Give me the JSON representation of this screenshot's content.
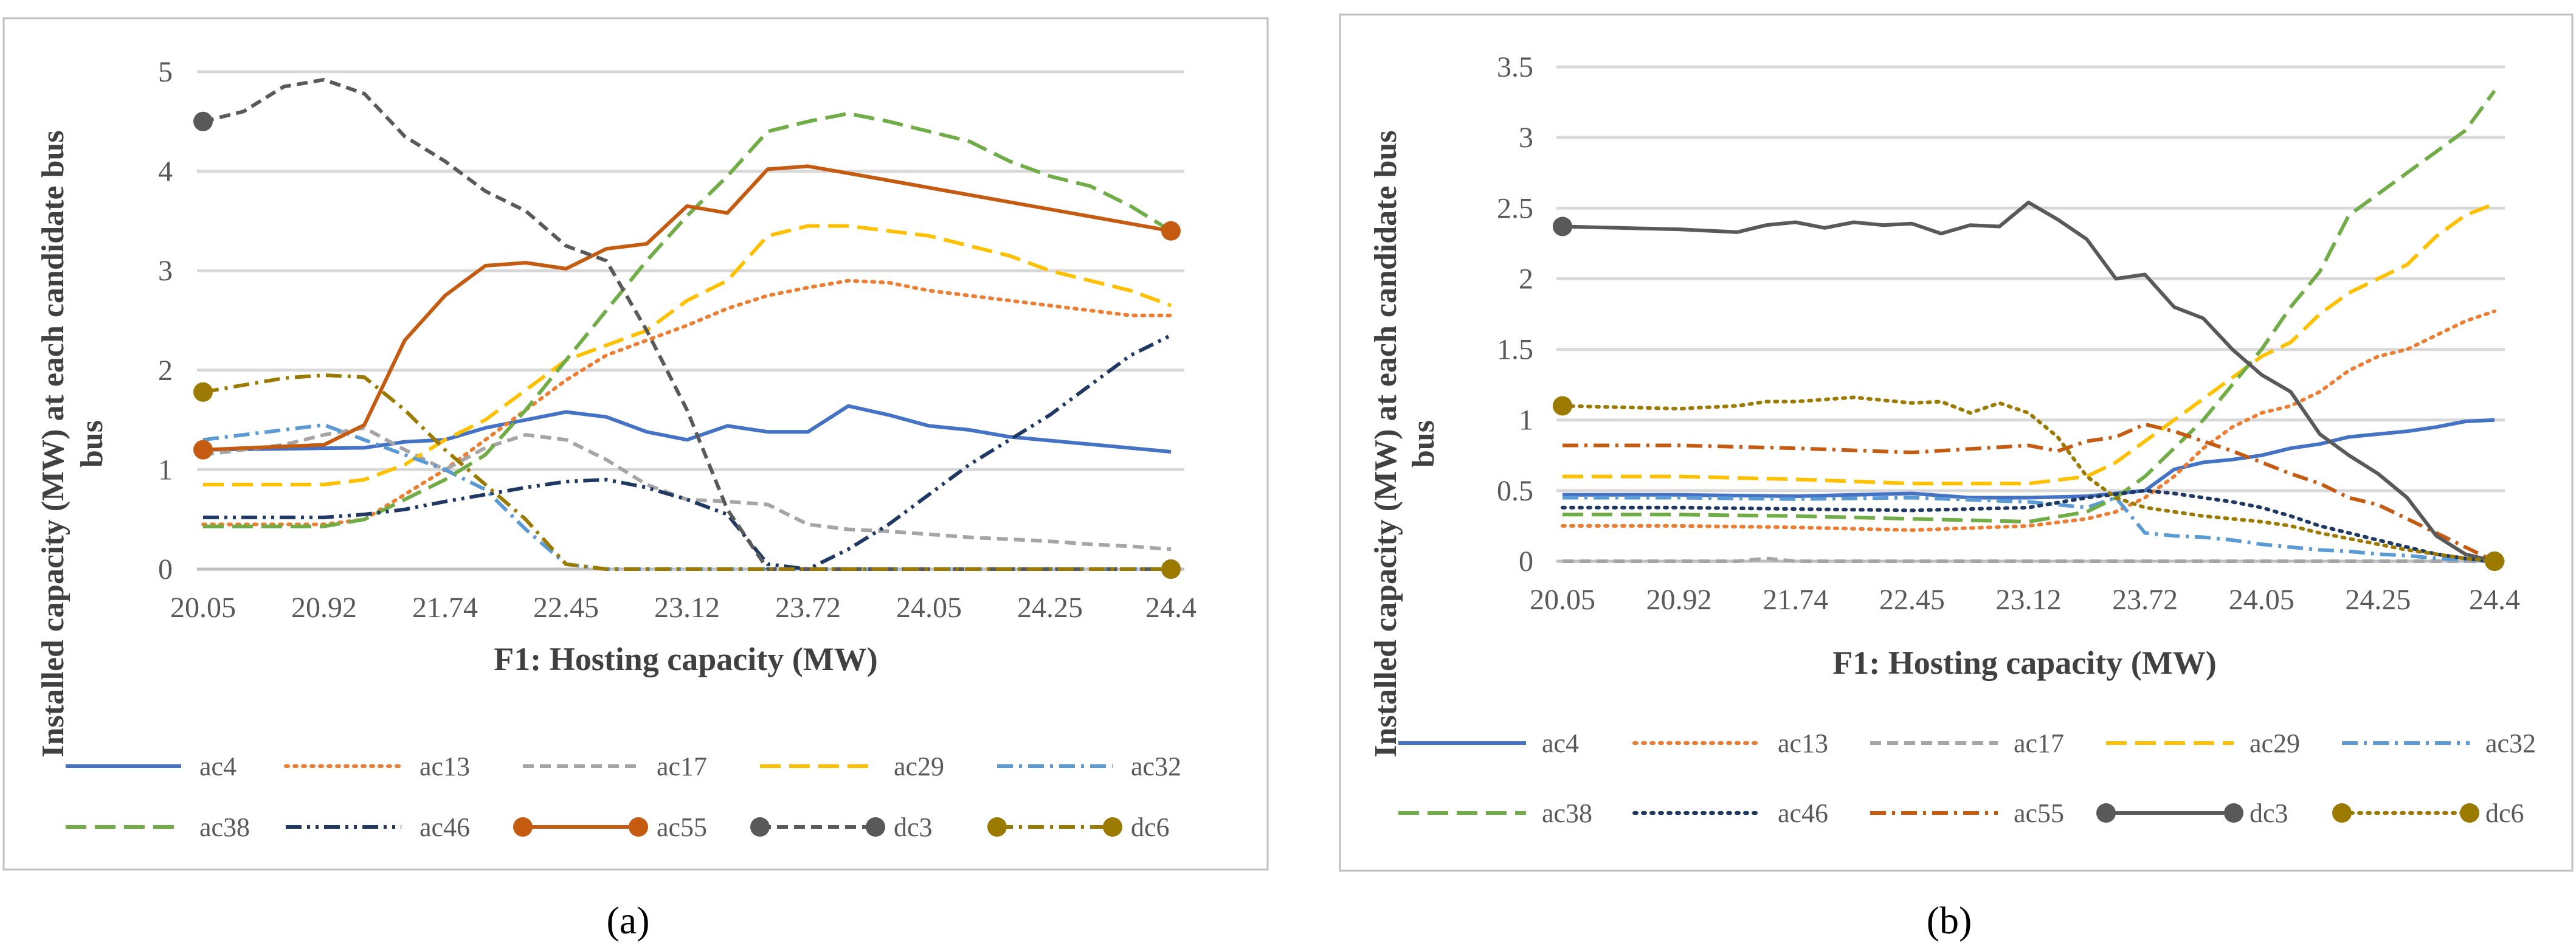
{
  "chart_data": [
    {
      "type": "line",
      "caption": "(a)",
      "ylabel": "Installed capacity (MW) at each candidate bus",
      "xlabel": "F1: Hosting capacity (MW)",
      "ylim": [
        0,
        5
      ],
      "yticks": [
        "0",
        "1",
        "2",
        "3",
        "4",
        "5"
      ],
      "x_tick_labels": [
        "20.05",
        "20.92",
        "21.74",
        "22.45",
        "23.12",
        "23.72",
        "24.05",
        "24.25",
        "24.4"
      ],
      "x_index_range": [
        0,
        24
      ],
      "grid": true,
      "legend": "bottom",
      "series": [
        {
          "name": "ac4",
          "color": "#4472C4",
          "style": "solid",
          "x": [
            0,
            4,
            5,
            6,
            7,
            8,
            9,
            10,
            11,
            12,
            13,
            14,
            15,
            16,
            17,
            18,
            19,
            20,
            24
          ],
          "y": [
            1.2,
            1.22,
            1.28,
            1.3,
            1.42,
            1.5,
            1.58,
            1.53,
            1.38,
            1.3,
            1.44,
            1.38,
            1.38,
            1.64,
            1.55,
            1.44,
            1.4,
            1.33,
            1.18
          ]
        },
        {
          "name": "ac13",
          "color": "#ED7D31",
          "style": "dotted",
          "x": [
            0,
            3,
            4,
            5,
            6,
            7,
            8,
            9,
            10,
            11,
            12,
            13,
            14,
            15,
            16,
            17,
            18,
            19,
            20,
            21,
            22,
            23,
            24
          ],
          "y": [
            0.45,
            0.45,
            0.5,
            0.75,
            1.0,
            1.3,
            1.6,
            1.9,
            2.15,
            2.3,
            2.45,
            2.62,
            2.75,
            2.83,
            2.9,
            2.88,
            2.8,
            2.75,
            2.7,
            2.65,
            2.6,
            2.55,
            2.55
          ]
        },
        {
          "name": "ac17",
          "color": "#A5A5A5",
          "style": "dash",
          "x": [
            0,
            2,
            3,
            4,
            5,
            6,
            7,
            8,
            9,
            10,
            11,
            12,
            13,
            14,
            15,
            16,
            17,
            18,
            19,
            20,
            21,
            22,
            23,
            24
          ],
          "y": [
            1.15,
            1.25,
            1.35,
            1.42,
            1.2,
            1.0,
            1.22,
            1.35,
            1.3,
            1.1,
            0.85,
            0.7,
            0.68,
            0.65,
            0.45,
            0.4,
            0.38,
            0.35,
            0.32,
            0.3,
            0.28,
            0.25,
            0.23,
            0.2
          ]
        },
        {
          "name": "ac29",
          "color": "#FFC000",
          "style": "longdash",
          "x": [
            0,
            3,
            4,
            5,
            6,
            7,
            8,
            9,
            10,
            11,
            12,
            13,
            14,
            15,
            16,
            17,
            18,
            19,
            20,
            21,
            22,
            23,
            24
          ],
          "y": [
            0.85,
            0.85,
            0.9,
            1.05,
            1.3,
            1.5,
            1.8,
            2.1,
            2.25,
            2.4,
            2.7,
            2.9,
            3.35,
            3.45,
            3.45,
            3.4,
            3.35,
            3.25,
            3.15,
            3.0,
            2.9,
            2.8,
            2.65
          ]
        },
        {
          "name": "ac32",
          "color": "#5B9BD5",
          "style": "dashdot",
          "x": [
            0,
            1,
            2,
            3,
            4,
            5,
            6,
            7,
            8,
            9,
            10,
            11,
            12,
            14,
            16,
            18,
            20,
            24
          ],
          "y": [
            1.3,
            1.35,
            1.4,
            1.45,
            1.3,
            1.15,
            1.0,
            0.8,
            0.4,
            0.05,
            0.0,
            0.0,
            0.0,
            0.0,
            0.0,
            0.0,
            0.0,
            0.0
          ]
        },
        {
          "name": "ac38",
          "color": "#70AD47",
          "style": "longdash",
          "x": [
            0,
            3,
            4,
            5,
            6,
            7,
            8,
            9,
            10,
            11,
            12,
            13,
            14,
            15,
            16,
            17,
            18,
            19,
            20,
            21,
            22,
            23,
            24
          ],
          "y": [
            0.43,
            0.43,
            0.5,
            0.7,
            0.9,
            1.15,
            1.6,
            2.1,
            2.6,
            3.1,
            3.55,
            3.95,
            4.4,
            4.5,
            4.58,
            4.5,
            4.4,
            4.3,
            4.1,
            3.95,
            3.85,
            3.65,
            3.4
          ]
        },
        {
          "name": "ac46",
          "color": "#203864",
          "style": "dashdotdot",
          "x": [
            0,
            3,
            4,
            5,
            6,
            7,
            8,
            9,
            10,
            11,
            12,
            13,
            14,
            15,
            16,
            17,
            18,
            19,
            20,
            21,
            22,
            23,
            24
          ],
          "y": [
            0.52,
            0.52,
            0.55,
            0.6,
            0.68,
            0.75,
            0.82,
            0.88,
            0.9,
            0.82,
            0.7,
            0.55,
            0.05,
            0.0,
            0.2,
            0.45,
            0.75,
            1.05,
            1.3,
            1.55,
            1.85,
            2.15,
            2.35
          ]
        },
        {
          "name": "ac55",
          "color": "#C55A11",
          "style": "solid",
          "markers": true,
          "x": [
            0,
            3,
            4,
            5,
            6,
            7,
            8,
            9,
            10,
            11,
            12,
            13,
            14,
            15,
            16,
            24
          ],
          "y": [
            1.2,
            1.25,
            1.45,
            2.3,
            2.75,
            3.05,
            3.08,
            3.02,
            3.22,
            3.27,
            3.65,
            3.58,
            4.02,
            4.05,
            3.98,
            3.4
          ]
        },
        {
          "name": "dc3",
          "color": "#595959",
          "style": "dash",
          "markers": true,
          "x": [
            0,
            1,
            2,
            3,
            4,
            5,
            6,
            7,
            8,
            9,
            10,
            11,
            12,
            13,
            14,
            15,
            16,
            18,
            20,
            22,
            24
          ],
          "y": [
            4.5,
            4.6,
            4.85,
            4.92,
            4.78,
            4.35,
            4.1,
            3.8,
            3.6,
            3.25,
            3.1,
            2.4,
            1.6,
            0.6,
            0.0,
            0.0,
            0.0,
            0.0,
            0.0,
            0.0,
            0.0
          ]
        },
        {
          "name": "dc6",
          "color": "#9C7A00",
          "style": "dashdot",
          "markers": true,
          "x": [
            0,
            1,
            2,
            3,
            4,
            5,
            6,
            7,
            8,
            9,
            10,
            11,
            12,
            14,
            16,
            18,
            20,
            22,
            24
          ],
          "y": [
            1.78,
            1.85,
            1.92,
            1.95,
            1.93,
            1.6,
            1.2,
            0.85,
            0.5,
            0.05,
            0.0,
            0.0,
            0.0,
            0.0,
            0.0,
            0.0,
            0.0,
            0.0,
            0.0
          ]
        }
      ]
    },
    {
      "type": "line",
      "caption": "(b)",
      "ylabel": "Installed capacity (MW) at each candidate bus",
      "xlabel": "F1: Hosting capacity (MW)",
      "ylim": [
        0,
        3.5
      ],
      "yticks": [
        "0",
        "0.5",
        "1",
        "1.5",
        "2",
        "2.5",
        "3",
        "3.5"
      ],
      "x_tick_labels": [
        "20.05",
        "20.92",
        "21.74",
        "22.45",
        "23.12",
        "23.72",
        "24.05",
        "24.25",
        "24.4"
      ],
      "x_index_range": [
        0,
        32
      ],
      "grid": true,
      "legend": "bottom",
      "series": [
        {
          "name": "ac4",
          "color": "#4472C4",
          "style": "solid",
          "x": [
            0,
            4,
            8,
            12,
            14,
            16,
            18,
            20,
            21,
            22,
            23,
            24,
            25,
            26,
            27,
            28,
            29,
            30,
            31,
            32
          ],
          "y": [
            0.47,
            0.47,
            0.46,
            0.48,
            0.45,
            0.45,
            0.46,
            0.5,
            0.65,
            0.7,
            0.72,
            0.75,
            0.8,
            0.83,
            0.88,
            0.9,
            0.92,
            0.95,
            0.99,
            1.0
          ]
        },
        {
          "name": "ac13",
          "color": "#ED7D31",
          "style": "dotted",
          "x": [
            0,
            4,
            8,
            12,
            16,
            18,
            19,
            20,
            21,
            22,
            23,
            24,
            25,
            26,
            27,
            28,
            29,
            30,
            31,
            32
          ],
          "y": [
            0.25,
            0.25,
            0.24,
            0.22,
            0.25,
            0.3,
            0.35,
            0.45,
            0.6,
            0.8,
            0.95,
            1.05,
            1.1,
            1.2,
            1.35,
            1.45,
            1.5,
            1.6,
            1.7,
            1.77
          ]
        },
        {
          "name": "ac17",
          "color": "#A5A5A5",
          "style": "dash",
          "x": [
            0,
            6,
            7,
            8,
            12,
            16,
            20,
            24,
            28,
            32
          ],
          "y": [
            0.0,
            0.0,
            0.02,
            0.0,
            0.0,
            0.0,
            0.0,
            0.0,
            0.0,
            0.0
          ]
        },
        {
          "name": "ac29",
          "color": "#FFC000",
          "style": "longdash",
          "x": [
            0,
            4,
            8,
            12,
            16,
            18,
            19,
            20,
            21,
            22,
            23,
            24,
            25,
            26,
            27,
            28,
            29,
            30,
            31,
            32
          ],
          "y": [
            0.6,
            0.6,
            0.58,
            0.55,
            0.55,
            0.6,
            0.7,
            0.85,
            1.0,
            1.15,
            1.3,
            1.45,
            1.55,
            1.75,
            1.9,
            2.0,
            2.1,
            2.3,
            2.45,
            2.53
          ]
        },
        {
          "name": "ac32",
          "color": "#5B9BD5",
          "style": "dashdot",
          "x": [
            0,
            4,
            8,
            12,
            16,
            18,
            19,
            20,
            21,
            22,
            23,
            24,
            25,
            26,
            27,
            28,
            29,
            30,
            31,
            32
          ],
          "y": [
            0.45,
            0.45,
            0.44,
            0.45,
            0.42,
            0.38,
            0.45,
            0.2,
            0.18,
            0.17,
            0.15,
            0.12,
            0.1,
            0.08,
            0.07,
            0.05,
            0.04,
            0.02,
            0.01,
            0.0
          ]
        },
        {
          "name": "ac38",
          "color": "#70AD47",
          "style": "longdash",
          "x": [
            0,
            4,
            8,
            12,
            16,
            18,
            19,
            20,
            21,
            22,
            23,
            24,
            25,
            26,
            27,
            28,
            29,
            30,
            31,
            32
          ],
          "y": [
            0.33,
            0.33,
            0.32,
            0.3,
            0.28,
            0.35,
            0.45,
            0.6,
            0.8,
            1.0,
            1.25,
            1.5,
            1.8,
            2.05,
            2.45,
            2.6,
            2.75,
            2.9,
            3.05,
            3.33
          ]
        },
        {
          "name": "ac46",
          "color": "#203864",
          "style": "dotted",
          "x": [
            0,
            4,
            8,
            12,
            16,
            18,
            20,
            21,
            22,
            23,
            24,
            25,
            26,
            27,
            28,
            29,
            30,
            31,
            32
          ],
          "y": [
            0.38,
            0.38,
            0.37,
            0.36,
            0.38,
            0.45,
            0.5,
            0.48,
            0.45,
            0.42,
            0.38,
            0.32,
            0.25,
            0.2,
            0.15,
            0.1,
            0.05,
            0.02,
            0.0
          ]
        },
        {
          "name": "ac55",
          "color": "#C55A11",
          "style": "dashdot",
          "x": [
            0,
            4,
            8,
            12,
            16,
            17,
            18,
            19,
            20,
            21,
            22,
            23,
            24,
            25,
            26,
            27,
            28,
            29,
            30,
            31,
            32
          ],
          "y": [
            0.82,
            0.82,
            0.8,
            0.77,
            0.82,
            0.78,
            0.85,
            0.88,
            0.97,
            0.92,
            0.85,
            0.78,
            0.7,
            0.62,
            0.55,
            0.45,
            0.4,
            0.3,
            0.2,
            0.1,
            0.0
          ]
        },
        {
          "name": "dc3",
          "color": "#595959",
          "style": "solid",
          "markers": true,
          "x": [
            0,
            4,
            6,
            7,
            8,
            9,
            10,
            11,
            12,
            13,
            14,
            15,
            16,
            17,
            18,
            19,
            20,
            21,
            22,
            23,
            24,
            25,
            26,
            27,
            28,
            29,
            30,
            31,
            32
          ],
          "y": [
            2.37,
            2.35,
            2.33,
            2.38,
            2.4,
            2.36,
            2.4,
            2.38,
            2.39,
            2.32,
            2.38,
            2.37,
            2.54,
            2.42,
            2.28,
            2.0,
            2.03,
            1.8,
            1.72,
            1.5,
            1.32,
            1.2,
            0.9,
            0.75,
            0.62,
            0.45,
            0.18,
            0.05,
            0.0
          ]
        },
        {
          "name": "dc6",
          "color": "#9C7A00",
          "style": "dotted",
          "markers": true,
          "x": [
            0,
            4,
            6,
            7,
            8,
            10,
            12,
            13,
            14,
            15,
            16,
            17,
            18,
            19,
            20,
            21,
            22,
            23,
            24,
            25,
            26,
            27,
            28,
            29,
            30,
            31,
            32
          ],
          "y": [
            1.1,
            1.08,
            1.1,
            1.13,
            1.13,
            1.16,
            1.12,
            1.13,
            1.05,
            1.12,
            1.05,
            0.88,
            0.6,
            0.45,
            0.38,
            0.35,
            0.32,
            0.3,
            0.28,
            0.25,
            0.2,
            0.16,
            0.12,
            0.08,
            0.05,
            0.02,
            0.0
          ]
        }
      ]
    }
  ]
}
